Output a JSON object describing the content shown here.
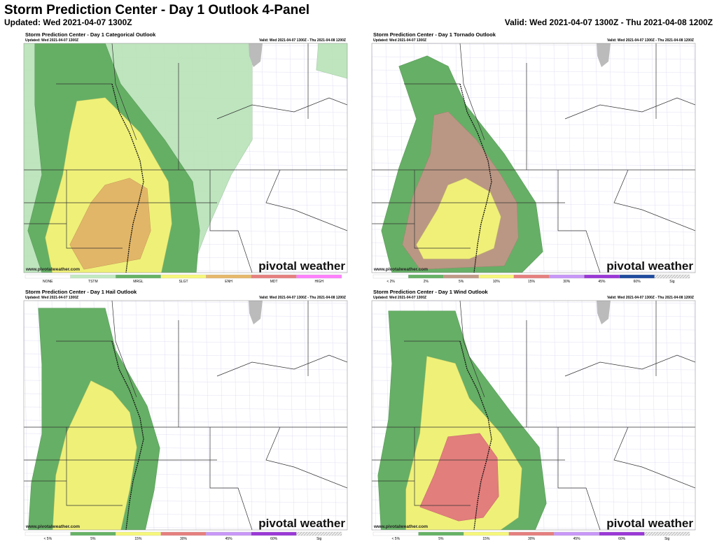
{
  "header": {
    "title": "Storm Prediction Center - Day 1 Outlook 4-Panel",
    "updated": "Updated: Wed 2021-04-07 1300Z",
    "valid": "Valid: Wed 2021-04-07 1300Z - Thu 2021-04-08 1200Z"
  },
  "panels": [
    {
      "title": "Storm Prediction Center - Day 1 Categorical Outlook",
      "updated": "Updated: Wed 2021-04-07 1300Z",
      "valid": "Valid: Wed 2021-04-07 1300Z - Thu 2021-04-08 1200Z",
      "watermark": "www.pivotalweather.com",
      "logo": "pivotal weather",
      "legend": [
        {
          "label": "NONE",
          "color": "#ffffff"
        },
        {
          "label": "TSTM",
          "color": "#c1e9c1"
        },
        {
          "label": "MRGL",
          "color": "#66b266"
        },
        {
          "label": "SLGT",
          "color": "#f6f67b"
        },
        {
          "label": "ENH",
          "color": "#e6b86a"
        },
        {
          "label": "MDT",
          "color": "#e67f7f"
        },
        {
          "label": "HIGH",
          "color": "#ff80ff"
        }
      ]
    },
    {
      "title": "Storm Prediction Center - Day 1 Tornado Outlook",
      "updated": "Updated: Wed 2021-04-07 1300Z",
      "valid": "Valid: Wed 2021-04-07 1300Z - Thu 2021-04-08 1200Z",
      "watermark": "www.pivotalweather.com",
      "logo": "pivotal weather",
      "legend": [
        {
          "label": "< 2%",
          "color": "#ffffff"
        },
        {
          "label": "2%",
          "color": "#66b266"
        },
        {
          "label": "5%",
          "color": "#c09a87"
        },
        {
          "label": "10%",
          "color": "#f6f67b"
        },
        {
          "label": "15%",
          "color": "#e67f7f"
        },
        {
          "label": "30%",
          "color": "#c896f7"
        },
        {
          "label": "45%",
          "color": "#9a37d6"
        },
        {
          "label": "60%",
          "color": "#1e4a9e"
        },
        {
          "label": "Sig",
          "color": "#dddddd"
        }
      ]
    },
    {
      "title": "Storm Prediction Center - Day 1 Hail Outlook",
      "updated": "Updated: Wed 2021-04-07 1300Z",
      "valid": "Valid: Wed 2021-04-07 1300Z - Thu 2021-04-08 1200Z",
      "watermark": "www.pivotalweather.com",
      "logo": "pivotal weather",
      "legend": [
        {
          "label": "< 5%",
          "color": "#ffffff"
        },
        {
          "label": "5%",
          "color": "#66b266"
        },
        {
          "label": "15%",
          "color": "#f6f67b"
        },
        {
          "label": "30%",
          "color": "#e67f7f"
        },
        {
          "label": "45%",
          "color": "#c896f7"
        },
        {
          "label": "60%",
          "color": "#9a37d6"
        },
        {
          "label": "Sig",
          "color": "#dddddd"
        }
      ]
    },
    {
      "title": "Storm Prediction Center - Day 1 Wind Outlook",
      "updated": "Updated: Wed 2021-04-07 1300Z",
      "valid": "Valid: Wed 2021-04-07 1300Z - Thu 2021-04-08 1200Z",
      "watermark": "www.pivotalweather.com",
      "logo": "pivotal weather",
      "legend": [
        {
          "label": "< 5%",
          "color": "#ffffff"
        },
        {
          "label": "5%",
          "color": "#66b266"
        },
        {
          "label": "15%",
          "color": "#f6f67b"
        },
        {
          "label": "30%",
          "color": "#e67f7f"
        },
        {
          "label": "45%",
          "color": "#c896f7"
        },
        {
          "label": "60%",
          "color": "#9a37d6"
        },
        {
          "label": "Sig",
          "color": "#dddddd"
        }
      ]
    }
  ]
}
